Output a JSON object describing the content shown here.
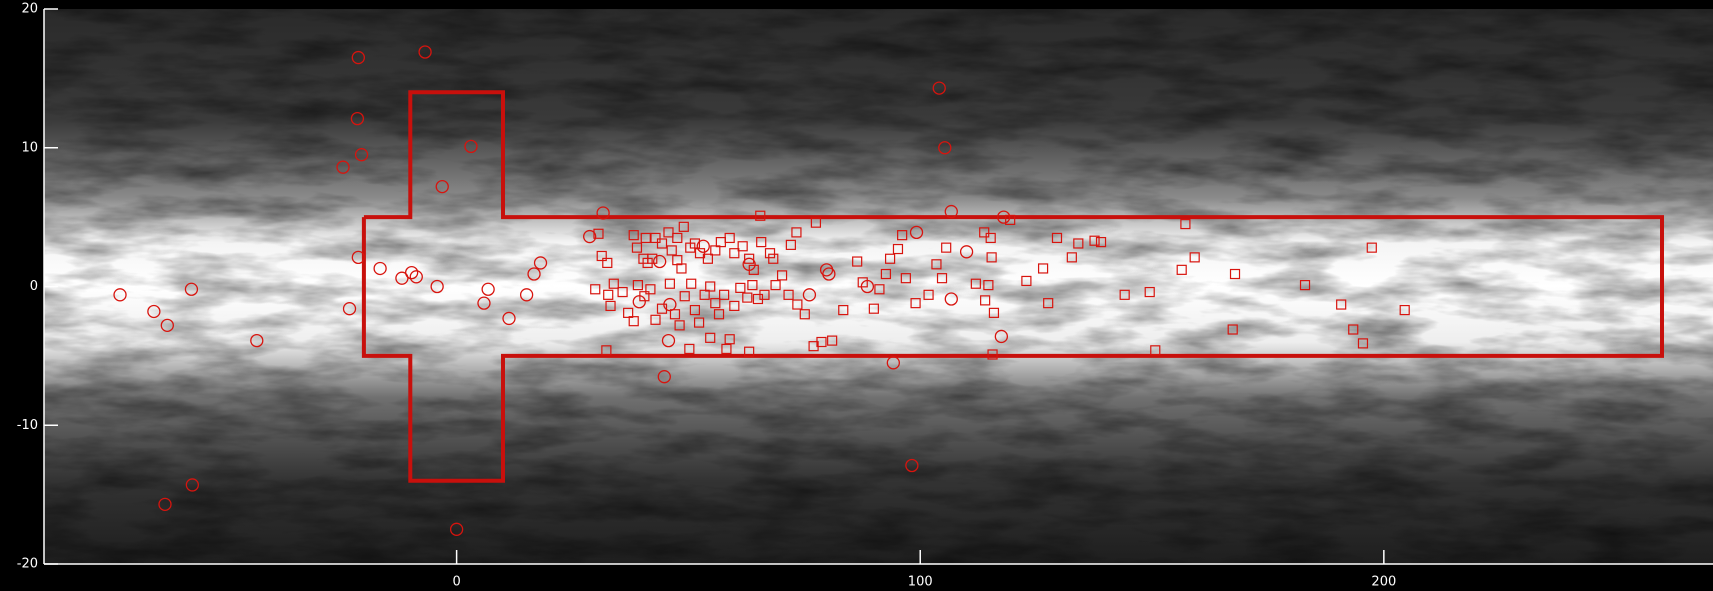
{
  "chart_data": {
    "type": "scatter",
    "xlim": [
      -89,
      271
    ],
    "ylim": [
      -20,
      20
    ],
    "xticks": [
      0,
      100,
      200
    ],
    "yticks": [
      -20,
      -10,
      0,
      10,
      20
    ],
    "region": {
      "color": "#c8100c",
      "x": [
        -20,
        -10,
        -10,
        10,
        10,
        260,
        260,
        10,
        10,
        -10,
        -10,
        -20,
        -20
      ],
      "y": [
        5,
        5,
        14,
        14,
        5,
        5,
        -5,
        -5,
        -14,
        -14,
        -5,
        -5,
        5
      ]
    },
    "series": [
      {
        "marker": "circle",
        "color": "#d8140e",
        "x": [
          -72.6,
          -65.3,
          -62.4,
          -57.2,
          -43.1,
          -62.9,
          -57,
          -21.2,
          -6.8,
          -21.4,
          -20.5,
          -24.5,
          -21.2,
          -23.1,
          -16.5,
          -11.8,
          -9.7,
          -8.7,
          -4.2,
          -3.1,
          3.1,
          6.8,
          5.9,
          11.3,
          15.1,
          16.7,
          18.1,
          0,
          31.6,
          28.7,
          44.8,
          45.7,
          46.0,
          39.4,
          43.8,
          53.2,
          63.1,
          76.1,
          79.8,
          80.3,
          88.6,
          94.2,
          99.2,
          104.1,
          105.3,
          106.7,
          110,
          106.7,
          117.5,
          118,
          98.2
        ],
        "y": [
          -0.6,
          -1.8,
          -2.8,
          -0.2,
          -3.9,
          -15.7,
          -14.3,
          16.5,
          16.9,
          12.1,
          9.5,
          8.6,
          2.1,
          -1.6,
          1.3,
          0.6,
          1.0,
          0.7,
          0.0,
          7.2,
          10.1,
          -0.2,
          -1.2,
          -2.3,
          -0.6,
          0.9,
          1.7,
          -17.5,
          5.3,
          3.6,
          -6.5,
          -3.9,
          -1.3,
          -1.1,
          1.8,
          2.9,
          1.6,
          -0.6,
          1.2,
          0.9,
          0,
          -5.5,
          3.9,
          14.3,
          10,
          5.4,
          2.5,
          -0.9,
          -3.6,
          5.0,
          -12.9
        ]
      },
      {
        "marker": "square",
        "color": "#d8140e",
        "x": [
          30.6,
          31.3,
          32.5,
          29.9,
          32.7,
          33.2,
          32.3,
          38.2,
          38.9,
          40.3,
          41.2,
          42.2,
          40.8,
          42.9,
          44.3,
          45.7,
          47.6,
          49.0,
          46.4,
          47.6,
          48.5,
          50.4,
          51.4,
          52.5,
          54.2,
          55.8,
          57.0,
          58.9,
          59.9,
          61.7,
          63.1,
          64.1,
          65.7,
          67.6,
          68.3,
          70.2,
          72.1,
          73.3,
          77.5,
          33.9,
          35.8,
          37.0,
          38.2,
          39.1,
          40.5,
          41.8,
          42.9,
          44.3,
          46.0,
          47.1,
          48.1,
          49.2,
          50.6,
          51.4,
          52.3,
          53.5,
          54.7,
          55.8,
          56.6,
          57.7,
          58.9,
          59.9,
          61.2,
          62.7,
          63.8,
          65.0,
          66.4,
          68.8,
          71.6,
          73.5,
          75.1,
          77.0,
          78.7,
          81.0,
          83.4,
          86.4,
          87.6,
          90.0,
          91.2,
          92.6,
          93.5,
          95.2,
          96.1,
          96.9,
          99.0,
          101.8,
          103.5,
          104.7,
          105.6,
          112,
          113.8,
          115.2,
          115.4,
          114.7,
          114.0,
          115.9,
          115.6,
          119.4,
          122.9,
          126.5,
          127.6,
          129.5,
          132.7,
          134.1,
          137.6,
          139,
          144.1,
          149.5,
          150.7,
          156.4,
          157.2,
          159.2,
          167.9,
          167.4,
          183,
          190.8,
          193.4,
          195.5,
          197.4,
          204.5,
          65.5,
          58.2,
          54.7,
          63.1,
          50.2
        ],
        "y": [
          3.8,
          2.2,
          1.7,
          -0.2,
          -0.6,
          -1.4,
          -4.6,
          3.7,
          2.8,
          2.0,
          1.7,
          2.0,
          3.5,
          3.5,
          3.1,
          3.9,
          3.5,
          4.3,
          2.6,
          1.9,
          1.3,
          2.8,
          3.1,
          2.4,
          2.0,
          2.6,
          3.2,
          3.5,
          2.4,
          2.9,
          2.0,
          1.2,
          3.2,
          2.4,
          2.0,
          0.8,
          3.0,
          3.9,
          4.6,
          0.2,
          -0.4,
          -1.9,
          -2.5,
          0.1,
          -0.7,
          -0.2,
          -2.4,
          -1.6,
          0.2,
          -2.0,
          -2.8,
          -0.7,
          0.2,
          -1.7,
          -2.6,
          -0.6,
          0,
          -1.2,
          -2.0,
          -0.6,
          -3.8,
          -1.4,
          -0.1,
          -0.8,
          0.1,
          -0.9,
          -0.6,
          0.1,
          -0.6,
          -1.3,
          -2.0,
          -4.3,
          -4.0,
          -3.9,
          -1.7,
          1.8,
          0.3,
          -1.6,
          -0.2,
          0.9,
          2.0,
          2.7,
          3.7,
          0.6,
          -1.2,
          -0.6,
          1.6,
          0.6,
          2.8,
          0.2,
          3.9,
          3.5,
          2.1,
          0.1,
          -1.0,
          -1.9,
          -4.9,
          4.8,
          0.4,
          1.3,
          -1.2,
          3.5,
          2.1,
          3.1,
          3.3,
          3.2,
          -0.6,
          -0.4,
          -4.6,
          1.2,
          4.5,
          2.1,
          0.9,
          -3.1,
          0.1,
          -1.3,
          -3.1,
          -4.1,
          2.8,
          -1.7,
          5.1,
          -4.5,
          -3.7,
          -4.7,
          -4.5
        ]
      }
    ]
  }
}
